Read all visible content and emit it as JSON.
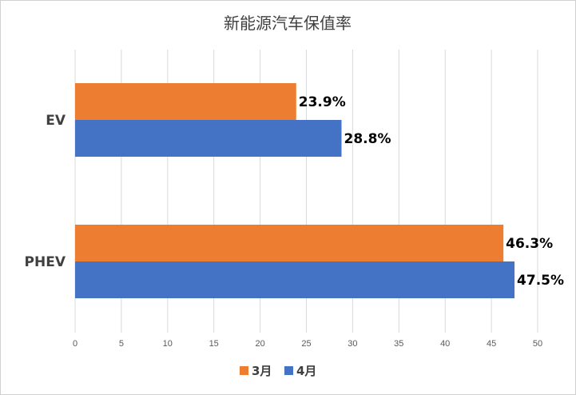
{
  "chart_data": {
    "type": "bar",
    "orientation": "horizontal",
    "title": "新能源汽车保值率",
    "categories": [
      "EV",
      "PHEV"
    ],
    "series": [
      {
        "name": "3月",
        "color": "#ed7d31",
        "values": [
          23.9,
          46.3
        ],
        "labels": [
          "23.9%",
          "46.3%"
        ]
      },
      {
        "name": "4月",
        "color": "#4472c4",
        "values": [
          28.8,
          47.5
        ],
        "labels": [
          "28.8%",
          "47.5%"
        ]
      }
    ],
    "xlim": [
      0,
      50
    ],
    "xticks": [
      "0",
      "5",
      "10",
      "15",
      "20",
      "25",
      "30",
      "35",
      "40",
      "45",
      "50"
    ],
    "grid": true,
    "legend_position": "bottom"
  }
}
